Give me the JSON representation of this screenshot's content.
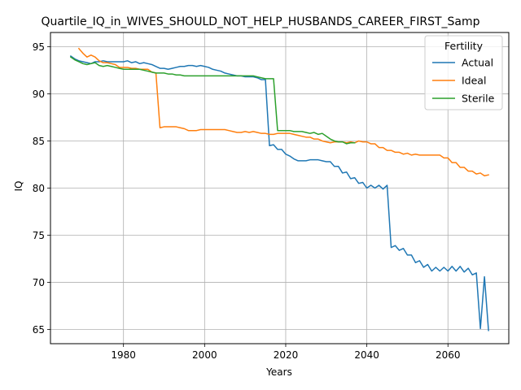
{
  "chart_data": {
    "type": "line",
    "title": "Quartile_IQ_in_WIVES_SHOULD_NOT_HELP_HUSBANDS_CAREER_FIRST_Samp",
    "xlabel": "Years",
    "ylabel": "IQ",
    "xlim": [
      1962,
      2075
    ],
    "ylim": [
      63.5,
      96.5
    ],
    "xticks": [
      1980,
      2000,
      2020,
      2040,
      2060
    ],
    "yticks": [
      65,
      70,
      75,
      80,
      85,
      90,
      95
    ],
    "grid": true,
    "legend": {
      "title": "Fertility",
      "placement": "top-right"
    },
    "series": [
      {
        "name": "Actual",
        "color": "#1f77b4",
        "points": [
          [
            1967,
            94.0
          ],
          [
            1968,
            93.7
          ],
          [
            1969,
            93.5
          ],
          [
            1970,
            93.4
          ],
          [
            1971,
            93.3
          ],
          [
            1972,
            93.2
          ],
          [
            1973,
            93.4
          ],
          [
            1974,
            93.4
          ],
          [
            1975,
            93.5
          ],
          [
            1976,
            93.4
          ],
          [
            1977,
            93.4
          ],
          [
            1978,
            93.4
          ],
          [
            1979,
            93.4
          ],
          [
            1980,
            93.4
          ],
          [
            1981,
            93.5
          ],
          [
            1982,
            93.3
          ],
          [
            1983,
            93.4
          ],
          [
            1984,
            93.2
          ],
          [
            1985,
            93.3
          ],
          [
            1986,
            93.2
          ],
          [
            1987,
            93.1
          ],
          [
            1988,
            92.9
          ],
          [
            1989,
            92.7
          ],
          [
            1990,
            92.7
          ],
          [
            1991,
            92.6
          ],
          [
            1992,
            92.7
          ],
          [
            1993,
            92.8
          ],
          [
            1994,
            92.9
          ],
          [
            1995,
            92.9
          ],
          [
            1996,
            93.0
          ],
          [
            1997,
            93.0
          ],
          [
            1998,
            92.9
          ],
          [
            1999,
            93.0
          ],
          [
            2000,
            92.9
          ],
          [
            2001,
            92.8
          ],
          [
            2002,
            92.6
          ],
          [
            2003,
            92.5
          ],
          [
            2004,
            92.4
          ],
          [
            2005,
            92.2
          ],
          [
            2006,
            92.1
          ],
          [
            2007,
            92.0
          ],
          [
            2008,
            91.9
          ],
          [
            2009,
            91.9
          ],
          [
            2010,
            91.8
          ],
          [
            2011,
            91.8
          ],
          [
            2012,
            91.8
          ],
          [
            2013,
            91.7
          ],
          [
            2014,
            91.5
          ],
          [
            2015,
            91.5
          ],
          [
            2016,
            84.5
          ],
          [
            2017,
            84.6
          ],
          [
            2018,
            84.1
          ],
          [
            2019,
            84.1
          ],
          [
            2020,
            83.6
          ],
          [
            2021,
            83.4
          ],
          [
            2022,
            83.1
          ],
          [
            2023,
            82.9
          ],
          [
            2024,
            82.9
          ],
          [
            2025,
            82.9
          ],
          [
            2026,
            83.0
          ],
          [
            2027,
            83.0
          ],
          [
            2028,
            83.0
          ],
          [
            2029,
            82.9
          ],
          [
            2030,
            82.8
          ],
          [
            2031,
            82.8
          ],
          [
            2032,
            82.3
          ],
          [
            2033,
            82.3
          ],
          [
            2034,
            81.6
          ],
          [
            2035,
            81.7
          ],
          [
            2036,
            81.0
          ],
          [
            2037,
            81.1
          ],
          [
            2038,
            80.5
          ],
          [
            2039,
            80.6
          ],
          [
            2040,
            80.0
          ],
          [
            2041,
            80.3
          ],
          [
            2042,
            80.0
          ],
          [
            2043,
            80.3
          ],
          [
            2044,
            79.9
          ],
          [
            2045,
            80.3
          ],
          [
            2046,
            73.7
          ],
          [
            2047,
            73.9
          ],
          [
            2048,
            73.4
          ],
          [
            2049,
            73.6
          ],
          [
            2050,
            72.9
          ],
          [
            2051,
            72.9
          ],
          [
            2052,
            72.1
          ],
          [
            2053,
            72.3
          ],
          [
            2054,
            71.6
          ],
          [
            2055,
            71.9
          ],
          [
            2056,
            71.2
          ],
          [
            2057,
            71.6
          ],
          [
            2058,
            71.2
          ],
          [
            2059,
            71.6
          ],
          [
            2060,
            71.2
          ],
          [
            2061,
            71.7
          ],
          [
            2062,
            71.2
          ],
          [
            2063,
            71.7
          ],
          [
            2064,
            71.1
          ],
          [
            2065,
            71.5
          ],
          [
            2066,
            70.8
          ],
          [
            2067,
            71.0
          ],
          [
            2068,
            65.1
          ],
          [
            2069,
            70.6
          ],
          [
            2070,
            64.9
          ]
        ]
      },
      {
        "name": "Ideal",
        "color": "#ff7f0e",
        "points": [
          [
            1969,
            94.8
          ],
          [
            1970,
            94.3
          ],
          [
            1971,
            93.9
          ],
          [
            1972,
            94.1
          ],
          [
            1973,
            93.9
          ],
          [
            1974,
            93.5
          ],
          [
            1975,
            93.3
          ],
          [
            1976,
            93.3
          ],
          [
            1977,
            93.2
          ],
          [
            1978,
            93.1
          ],
          [
            1979,
            92.8
          ],
          [
            1980,
            92.8
          ],
          [
            1981,
            92.8
          ],
          [
            1982,
            92.7
          ],
          [
            1983,
            92.7
          ],
          [
            1984,
            92.6
          ],
          [
            1985,
            92.6
          ],
          [
            1986,
            92.6
          ],
          [
            1987,
            92.3
          ],
          [
            1988,
            92.2
          ],
          [
            1989,
            86.4
          ],
          [
            1990,
            86.5
          ],
          [
            1991,
            86.5
          ],
          [
            1992,
            86.5
          ],
          [
            1993,
            86.5
          ],
          [
            1994,
            86.4
          ],
          [
            1995,
            86.3
          ],
          [
            1996,
            86.1
          ],
          [
            1997,
            86.1
          ],
          [
            1998,
            86.1
          ],
          [
            1999,
            86.2
          ],
          [
            2000,
            86.2
          ],
          [
            2001,
            86.2
          ],
          [
            2002,
            86.2
          ],
          [
            2003,
            86.2
          ],
          [
            2004,
            86.2
          ],
          [
            2005,
            86.2
          ],
          [
            2006,
            86.1
          ],
          [
            2007,
            86.0
          ],
          [
            2008,
            85.9
          ],
          [
            2009,
            85.9
          ],
          [
            2010,
            86.0
          ],
          [
            2011,
            85.9
          ],
          [
            2012,
            86.0
          ],
          [
            2013,
            85.9
          ],
          [
            2014,
            85.8
          ],
          [
            2015,
            85.8
          ],
          [
            2016,
            85.7
          ],
          [
            2017,
            85.7
          ],
          [
            2018,
            85.8
          ],
          [
            2019,
            85.8
          ],
          [
            2020,
            85.8
          ],
          [
            2021,
            85.8
          ],
          [
            2022,
            85.7
          ],
          [
            2023,
            85.6
          ],
          [
            2024,
            85.5
          ],
          [
            2025,
            85.4
          ],
          [
            2026,
            85.4
          ],
          [
            2027,
            85.2
          ],
          [
            2028,
            85.2
          ],
          [
            2029,
            85.0
          ],
          [
            2030,
            84.9
          ],
          [
            2031,
            84.8
          ],
          [
            2032,
            84.9
          ],
          [
            2033,
            84.9
          ],
          [
            2034,
            84.9
          ],
          [
            2035,
            84.8
          ],
          [
            2036,
            84.9
          ],
          [
            2037,
            84.8
          ],
          [
            2038,
            85.0
          ],
          [
            2039,
            84.9
          ],
          [
            2040,
            84.9
          ],
          [
            2041,
            84.7
          ],
          [
            2042,
            84.7
          ],
          [
            2043,
            84.3
          ],
          [
            2044,
            84.3
          ],
          [
            2045,
            84.0
          ],
          [
            2046,
            84.0
          ],
          [
            2047,
            83.8
          ],
          [
            2048,
            83.8
          ],
          [
            2049,
            83.6
          ],
          [
            2050,
            83.7
          ],
          [
            2051,
            83.5
          ],
          [
            2052,
            83.6
          ],
          [
            2053,
            83.5
          ],
          [
            2054,
            83.5
          ],
          [
            2055,
            83.5
          ],
          [
            2056,
            83.5
          ],
          [
            2057,
            83.5
          ],
          [
            2058,
            83.5
          ],
          [
            2059,
            83.2
          ],
          [
            2060,
            83.2
          ],
          [
            2061,
            82.7
          ],
          [
            2062,
            82.7
          ],
          [
            2063,
            82.2
          ],
          [
            2064,
            82.2
          ],
          [
            2065,
            81.8
          ],
          [
            2066,
            81.8
          ],
          [
            2067,
            81.5
          ],
          [
            2068,
            81.6
          ],
          [
            2069,
            81.3
          ],
          [
            2070,
            81.4
          ]
        ]
      },
      {
        "name": "Sterile",
        "color": "#2ca02c",
        "points": [
          [
            1967,
            93.9
          ],
          [
            1968,
            93.6
          ],
          [
            1969,
            93.4
          ],
          [
            1970,
            93.2
          ],
          [
            1971,
            93.1
          ],
          [
            1972,
            93.2
          ],
          [
            1973,
            93.3
          ],
          [
            1974,
            93.0
          ],
          [
            1975,
            92.9
          ],
          [
            1976,
            93.0
          ],
          [
            1977,
            92.9
          ],
          [
            1978,
            92.8
          ],
          [
            1979,
            92.7
          ],
          [
            1980,
            92.6
          ],
          [
            1981,
            92.6
          ],
          [
            1982,
            92.6
          ],
          [
            1983,
            92.6
          ],
          [
            1984,
            92.6
          ],
          [
            1985,
            92.5
          ],
          [
            1986,
            92.4
          ],
          [
            1987,
            92.3
          ],
          [
            1988,
            92.2
          ],
          [
            1989,
            92.2
          ],
          [
            1990,
            92.2
          ],
          [
            1991,
            92.1
          ],
          [
            1992,
            92.1
          ],
          [
            1993,
            92.0
          ],
          [
            1994,
            92.0
          ],
          [
            1995,
            91.9
          ],
          [
            1996,
            91.9
          ],
          [
            1997,
            91.9
          ],
          [
            1998,
            91.9
          ],
          [
            1999,
            91.9
          ],
          [
            2000,
            91.9
          ],
          [
            2001,
            91.9
          ],
          [
            2002,
            91.9
          ],
          [
            2003,
            91.9
          ],
          [
            2004,
            91.9
          ],
          [
            2005,
            91.9
          ],
          [
            2006,
            91.9
          ],
          [
            2007,
            91.9
          ],
          [
            2008,
            91.9
          ],
          [
            2009,
            91.9
          ],
          [
            2010,
            91.9
          ],
          [
            2011,
            91.9
          ],
          [
            2012,
            91.9
          ],
          [
            2013,
            91.8
          ],
          [
            2014,
            91.7
          ],
          [
            2015,
            91.6
          ],
          [
            2016,
            91.6
          ],
          [
            2017,
            91.6
          ],
          [
            2018,
            86.1
          ],
          [
            2019,
            86.1
          ],
          [
            2020,
            86.1
          ],
          [
            2021,
            86.1
          ],
          [
            2022,
            86.0
          ],
          [
            2023,
            86.0
          ],
          [
            2024,
            86.0
          ],
          [
            2025,
            85.9
          ],
          [
            2026,
            85.8
          ],
          [
            2027,
            85.9
          ],
          [
            2028,
            85.7
          ],
          [
            2029,
            85.8
          ],
          [
            2030,
            85.5
          ],
          [
            2031,
            85.2
          ],
          [
            2032,
            85.0
          ],
          [
            2033,
            84.9
          ],
          [
            2034,
            84.9
          ],
          [
            2035,
            84.7
          ],
          [
            2036,
            84.8
          ],
          [
            2037,
            84.8
          ]
        ]
      }
    ]
  }
}
